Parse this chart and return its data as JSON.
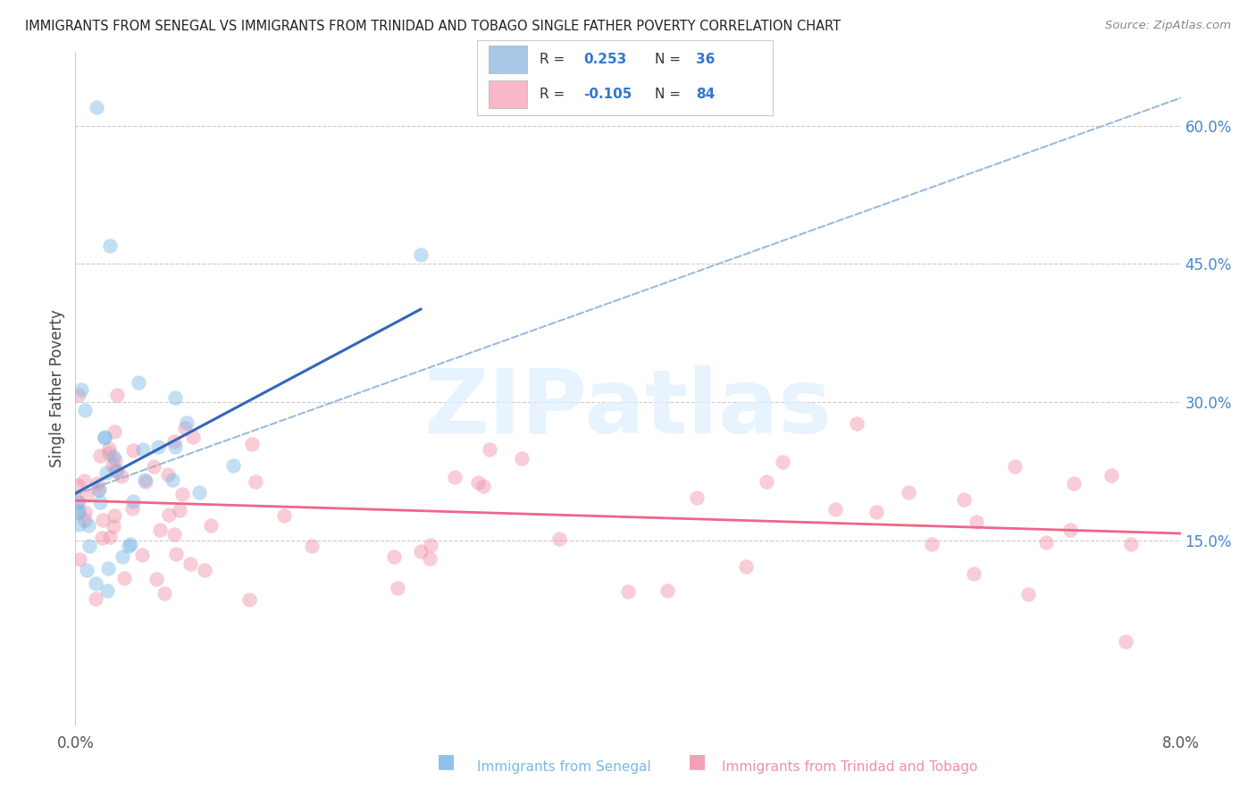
{
  "title": "IMMIGRANTS FROM SENEGAL VS IMMIGRANTS FROM TRINIDAD AND TOBAGO SINGLE FATHER POVERTY CORRELATION CHART",
  "source": "Source: ZipAtlas.com",
  "ylabel": "Single Father Poverty",
  "x_min": 0.0,
  "x_max": 8.0,
  "y_min": -5.0,
  "y_max": 68.0,
  "right_yticks": [
    15.0,
    30.0,
    45.0,
    60.0
  ],
  "legend1_color": "#a8c8e8",
  "legend2_color": "#f8b8c8",
  "senegal_color": "#7ab8e8",
  "trinidad_color": "#f090a8",
  "trend1_color": "#3366bb",
  "trend2_color": "#ee6688",
  "dashed_line_color": "#99bbdd",
  "background_color": "#ffffff",
  "grid_color": "#cccccc",
  "watermark_color": "#ddeeff",
  "watermark_text": "ZIPatlas",
  "bottom_label1": "Immigrants from Senegal",
  "bottom_label2": "Immigrants from Trinidad and Tobago",
  "r1": "0.253",
  "n1": "36",
  "r2": "-0.105",
  "n2": "84"
}
